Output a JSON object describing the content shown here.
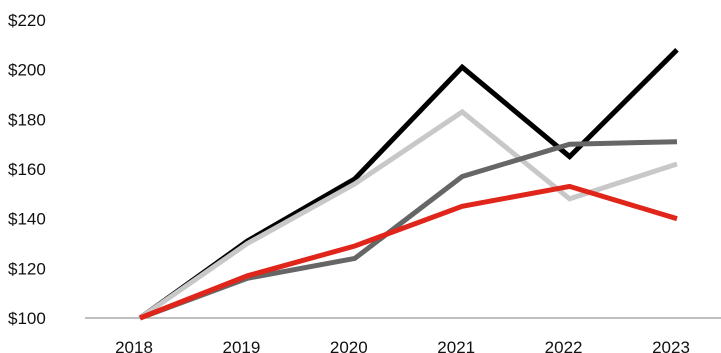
{
  "chart_data": {
    "type": "line",
    "title": "",
    "xlabel": "",
    "ylabel": "",
    "categories": [
      "2018",
      "2019",
      "2020",
      "2021",
      "2022",
      "2023"
    ],
    "ylim": [
      100,
      220
    ],
    "yticks": [
      100,
      120,
      140,
      160,
      180,
      200,
      220
    ],
    "ytick_labels": [
      "$100",
      "$120",
      "$140",
      "$160",
      "$180",
      "$200",
      "$220"
    ],
    "grid": false,
    "baseline_axis": true,
    "series": [
      {
        "color": "#000000",
        "values": [
          100,
          131,
          156,
          201,
          165,
          208
        ]
      },
      {
        "color": "#c8c8c8",
        "values": [
          100,
          130,
          154,
          183,
          148,
          162
        ]
      },
      {
        "color": "#666666",
        "values": [
          100,
          116,
          124,
          157,
          170,
          171
        ]
      },
      {
        "color": "#e0251b",
        "values": [
          100,
          117,
          129,
          145,
          153,
          140
        ]
      }
    ]
  }
}
